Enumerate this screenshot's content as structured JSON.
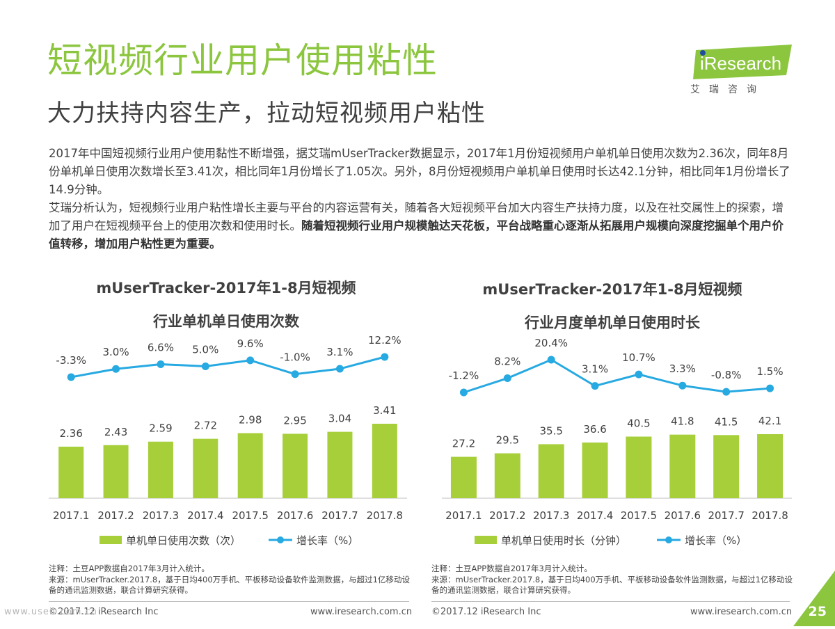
{
  "page": {
    "title": "短视频行业用户使用粘性",
    "subtitle": "大力扶持内容生产，拉动短视频用户粘性",
    "logo": {
      "name": "iResearch",
      "cn": "艾瑞咨询",
      "brand_color": "#8cc63f"
    },
    "paragraph1": "2017年中国短视频行业用户使用黏性不断增强，据艾瑞mUserTracker数据显示，2017年1月份短视频用户单机单日使用次数为2.36次，同年8月份单机单日使用次数增长至3.41次，相比同年1月份增长了1.05次。另外，8月份短视频用户单机单日使用时长达42.1分钟，相比同年1月份增长了14.9分钟。",
    "paragraph2_normal": "艾瑞分析认为，短视频行业用户粘性增长主要与平台的内容运营有关，随着各大短视频平台加大内容生产扶持力度，以及在社交属性上的探索，增加了用户在短视频平台上的使用次数和使用时长。",
    "paragraph2_bold": "随着短视频行业用户规模触达天花板，平台战略重心逐渐从拓展用户规模向深度挖掘单个用户价值转移，增加用户粘性更为重要。",
    "page_number": "25",
    "watermark": "www.useit.com.cn"
  },
  "colors": {
    "bar": "#a6cf3a",
    "line": "#27a9e1",
    "accent": "#8cc63f"
  },
  "chart_data": [
    {
      "type": "bar",
      "title_line1": "mUserTracker-2017年1-8月短视频",
      "title_line2": "行业单机单日使用次数",
      "categories": [
        "2017.1",
        "2017.2",
        "2017.3",
        "2017.4",
        "2017.5",
        "2017.6",
        "2017.7",
        "2017.8"
      ],
      "series": [
        {
          "name": "单机单日使用次数（次）",
          "type": "bar",
          "values": [
            2.36,
            2.43,
            2.59,
            2.72,
            2.98,
            2.95,
            3.04,
            3.41
          ],
          "labels": [
            "2.36",
            "2.43",
            "2.59",
            "2.72",
            "2.98",
            "2.95",
            "3.04",
            "3.41"
          ]
        },
        {
          "name": "增长率（%）",
          "type": "line",
          "values": [
            -3.3,
            3.0,
            6.6,
            5.0,
            9.6,
            -1.0,
            3.1,
            12.2
          ],
          "labels": [
            "-3.3%",
            "3.0%",
            "6.6%",
            "5.0%",
            "9.6%",
            "-1.0%",
            "3.1%",
            "12.2%"
          ]
        }
      ],
      "legend_position": "bottom",
      "note": "注释：土豆APP数据自2017年3月计入统计。",
      "source": "来源：mUserTracker.2017.8，基于日均400万手机、平板移动设备软件监测数据，与超过1亿移动设备的通讯监测数据，联合计算研究获得。",
      "footer_left": "©2017.12 iResearch Inc",
      "footer_right": "www.iresearch.com.cn"
    },
    {
      "type": "bar",
      "title_line1": "mUserTracker-2017年1-8月短视频",
      "title_line2": "行业月度单机单日使用时长",
      "categories": [
        "2017.1",
        "2017.2",
        "2017.3",
        "2017.4",
        "2017.5",
        "2017.6",
        "2017.7",
        "2017.8"
      ],
      "series": [
        {
          "name": "单机单日使用时长（分钟）",
          "type": "bar",
          "values": [
            27.2,
            29.5,
            35.5,
            36.6,
            40.5,
            41.8,
            41.5,
            42.1
          ],
          "labels": [
            "27.2",
            "29.5",
            "35.5",
            "36.6",
            "40.5",
            "41.8",
            "41.5",
            "42.1"
          ]
        },
        {
          "name": "增长率（%）",
          "type": "line",
          "values": [
            -1.2,
            8.2,
            20.4,
            3.1,
            10.7,
            3.3,
            -0.8,
            1.5
          ],
          "labels": [
            "-1.2%",
            "8.2%",
            "20.4%",
            "3.1%",
            "10.7%",
            "3.3%",
            "-0.8%",
            "1.5%"
          ]
        }
      ],
      "legend_position": "bottom",
      "note": "注释：土豆APP数据自2017年3月计入统计。",
      "source": "来源：mUserTracker.2017.8，基于日均400万手机、平板移动设备软件监测数据，与超过1亿移动设备的通讯监测数据，联合计算研究获得。",
      "footer_left": "©2017.12 iResearch Inc",
      "footer_right": "www.iresearch.com.cn"
    }
  ]
}
